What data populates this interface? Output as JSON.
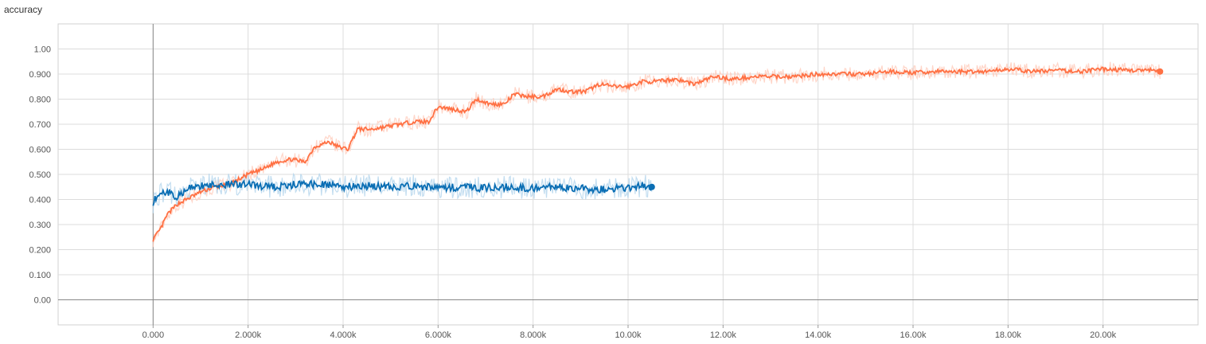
{
  "chart_data": {
    "type": "line",
    "title": "accuracy",
    "xlabel": "",
    "ylabel": "",
    "xlim": [
      -2000,
      22000
    ],
    "ylim": [
      -0.1,
      1.1
    ],
    "grid": true,
    "legend": "none",
    "x_ticks": [
      0,
      2000,
      4000,
      6000,
      8000,
      10000,
      12000,
      14000,
      16000,
      18000,
      20000
    ],
    "x_tick_labels": [
      "0.000",
      "2.000k",
      "4.000k",
      "6.000k",
      "8.000k",
      "10.00k",
      "12.00k",
      "14.00k",
      "16.00k",
      "18.00k",
      "20.00k"
    ],
    "y_ticks": [
      0,
      0.1,
      0.2,
      0.3,
      0.4,
      0.5,
      0.6,
      0.7,
      0.8,
      0.9,
      1.0
    ],
    "y_tick_labels": [
      "0.00",
      "0.100",
      "0.200",
      "0.300",
      "0.400",
      "0.500",
      "0.600",
      "0.700",
      "0.800",
      "0.900",
      "1.00"
    ],
    "series": [
      {
        "color": "#ff7043",
        "raw_color": "#ffccbc",
        "points": [
          [
            0,
            0.24
          ],
          [
            150,
            0.28
          ],
          [
            300,
            0.34
          ],
          [
            500,
            0.38
          ],
          [
            800,
            0.41
          ],
          [
            1000,
            0.43
          ],
          [
            1300,
            0.45
          ],
          [
            1600,
            0.46
          ],
          [
            1800,
            0.48
          ],
          [
            2000,
            0.5
          ],
          [
            2300,
            0.52
          ],
          [
            2600,
            0.55
          ],
          [
            2900,
            0.56
          ],
          [
            3200,
            0.55
          ],
          [
            3400,
            0.61
          ],
          [
            3700,
            0.63
          ],
          [
            3900,
            0.61
          ],
          [
            4100,
            0.6
          ],
          [
            4300,
            0.68
          ],
          [
            4600,
            0.68
          ],
          [
            4900,
            0.69
          ],
          [
            5200,
            0.7
          ],
          [
            5500,
            0.71
          ],
          [
            5800,
            0.71
          ],
          [
            6000,
            0.77
          ],
          [
            6300,
            0.76
          ],
          [
            6600,
            0.75
          ],
          [
            6800,
            0.8
          ],
          [
            7100,
            0.78
          ],
          [
            7400,
            0.78
          ],
          [
            7600,
            0.82
          ],
          [
            7900,
            0.81
          ],
          [
            8200,
            0.81
          ],
          [
            8500,
            0.84
          ],
          [
            8800,
            0.83
          ],
          [
            9100,
            0.83
          ],
          [
            9400,
            0.86
          ],
          [
            9700,
            0.85
          ],
          [
            10000,
            0.85
          ],
          [
            10300,
            0.87
          ],
          [
            10600,
            0.87
          ],
          [
            11000,
            0.88
          ],
          [
            11400,
            0.86
          ],
          [
            11800,
            0.89
          ],
          [
            12200,
            0.88
          ],
          [
            12700,
            0.89
          ],
          [
            13000,
            0.89
          ],
          [
            13500,
            0.89
          ],
          [
            14000,
            0.9
          ],
          [
            14500,
            0.9
          ],
          [
            15000,
            0.9
          ],
          [
            15500,
            0.91
          ],
          [
            16000,
            0.905
          ],
          [
            16500,
            0.91
          ],
          [
            17000,
            0.91
          ],
          [
            17500,
            0.91
          ],
          [
            18000,
            0.92
          ],
          [
            18500,
            0.91
          ],
          [
            19000,
            0.915
          ],
          [
            19500,
            0.91
          ],
          [
            20000,
            0.92
          ],
          [
            20500,
            0.915
          ],
          [
            21000,
            0.915
          ],
          [
            21200,
            0.91
          ]
        ]
      },
      {
        "color": "#0a6eb4",
        "raw_color": "#b3d4ec",
        "points": [
          [
            0,
            0.39
          ],
          [
            100,
            0.42
          ],
          [
            300,
            0.43
          ],
          [
            500,
            0.41
          ],
          [
            700,
            0.44
          ],
          [
            900,
            0.45
          ],
          [
            1200,
            0.46
          ],
          [
            1500,
            0.46
          ],
          [
            2000,
            0.46
          ],
          [
            2500,
            0.45
          ],
          [
            3000,
            0.46
          ],
          [
            3500,
            0.46
          ],
          [
            4000,
            0.45
          ],
          [
            4500,
            0.455
          ],
          [
            5000,
            0.45
          ],
          [
            5500,
            0.455
          ],
          [
            6000,
            0.445
          ],
          [
            6500,
            0.45
          ],
          [
            7000,
            0.445
          ],
          [
            7500,
            0.45
          ],
          [
            8000,
            0.445
          ],
          [
            8500,
            0.45
          ],
          [
            9000,
            0.445
          ],
          [
            9500,
            0.44
          ],
          [
            10000,
            0.445
          ],
          [
            10300,
            0.455
          ],
          [
            10500,
            0.45
          ]
        ]
      }
    ]
  }
}
